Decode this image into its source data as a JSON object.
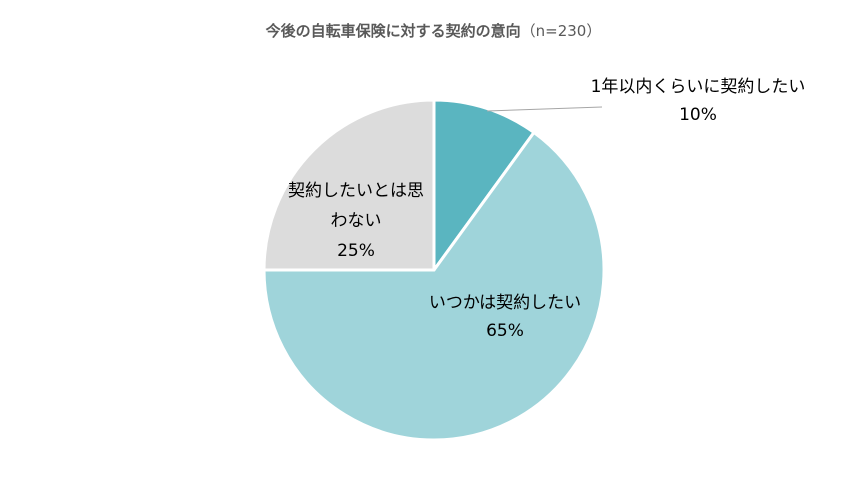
{
  "chart_data": {
    "type": "pie",
    "title": "今後の自転車保険に対する契約の意向",
    "subtitle": "（n=230）",
    "categories": [
      "1年以内くらいに契約したい",
      "いつかは契約したい",
      "契約したいとは思わない"
    ],
    "values": [
      10,
      65,
      25
    ],
    "series": [
      {
        "values": [
          10,
          65,
          25
        ]
      }
    ],
    "colors": [
      "#5ab5c0",
      "#9fd4da",
      "#dcdcdc"
    ],
    "slice_labels": [
      {
        "lines": [
          "1年以内くらいに契約したい"
        ],
        "pct": "10%"
      },
      {
        "lines": [
          "いつかは契約したい"
        ],
        "pct": "65%"
      },
      {
        "lines": [
          "契約したいとは思",
          "わない"
        ],
        "pct": "25%"
      }
    ],
    "start_angle": "12 o'clock",
    "direction": "clockwise",
    "legend": "none"
  }
}
